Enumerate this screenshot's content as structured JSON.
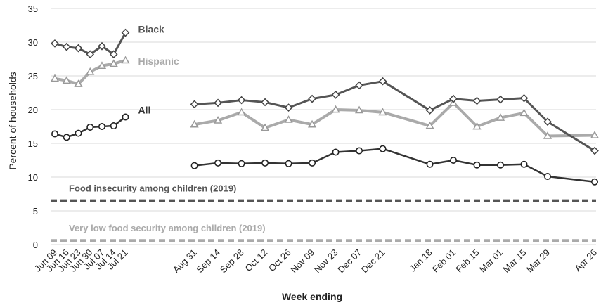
{
  "chart_data": {
    "type": "line",
    "title": "",
    "xlabel": "Week ending",
    "ylabel": "Percent of households",
    "ylim": [
      0,
      35
    ],
    "yticks": [
      0,
      5,
      10,
      15,
      20,
      25,
      30,
      35
    ],
    "grid": "horizontal",
    "categories": [
      "Jun 09",
      "Jun 16",
      "Jun 23",
      "Jun 30",
      "Jul 07",
      "Jul 14",
      "Jul 21",
      "Aug 31",
      "Sep 14",
      "Sep 28",
      "Oct 12",
      "Oct 26",
      "Nov 09",
      "Nov 23",
      "Dec 07",
      "Dec 21",
      "Jan 18",
      "Feb 01",
      "Feb 15",
      "Mar 01",
      "Mar 15",
      "Mar 29",
      "Apr 26"
    ],
    "series": [
      {
        "name": "Black",
        "color": "#555555",
        "marker": "diamond",
        "segments": [
          {
            "x": [
              "Jun 09",
              "Jun 16",
              "Jun 23",
              "Jun 30",
              "Jul 07",
              "Jul 14",
              "Jul 21"
            ],
            "y": [
              29.8,
              29.3,
              29.1,
              28.2,
              29.4,
              28.2,
              31.4
            ]
          },
          {
            "x": [
              "Aug 31",
              "Sep 14",
              "Sep 28",
              "Oct 12",
              "Oct 26",
              "Nov 09",
              "Nov 23",
              "Dec 07",
              "Dec 21",
              "Jan 18",
              "Feb 01",
              "Feb 15",
              "Mar 01",
              "Mar 15",
              "Mar 29",
              "Apr 26"
            ],
            "y": [
              20.8,
              21.0,
              21.4,
              21.1,
              20.3,
              21.6,
              22.2,
              23.6,
              24.2,
              19.9,
              21.6,
              21.3,
              21.5,
              21.7,
              18.2,
              13.9
            ]
          }
        ]
      },
      {
        "name": "Hispanic",
        "color": "#aaaaaa",
        "marker": "triangle",
        "segments": [
          {
            "x": [
              "Jun 09",
              "Jun 16",
              "Jun 23",
              "Jun 30",
              "Jul 07",
              "Jul 14",
              "Jul 21"
            ],
            "y": [
              24.6,
              24.3,
              23.8,
              25.6,
              26.5,
              26.8,
              27.3
            ]
          },
          {
            "x": [
              "Aug 31",
              "Sep 14",
              "Sep 28",
              "Oct 12",
              "Oct 26",
              "Nov 09",
              "Nov 23",
              "Dec 07",
              "Dec 21",
              "Jan 18",
              "Feb 01",
              "Feb 15",
              "Mar 01",
              "Mar 15",
              "Mar 29",
              "Apr 26"
            ],
            "y": [
              17.8,
              18.4,
              19.6,
              17.3,
              18.5,
              17.8,
              20.0,
              19.9,
              19.6,
              17.6,
              21.0,
              17.5,
              18.8,
              19.5,
              16.1,
              16.2
            ]
          }
        ]
      },
      {
        "name": "All",
        "color": "#333333",
        "marker": "circle",
        "segments": [
          {
            "x": [
              "Jun 09",
              "Jun 16",
              "Jun 23",
              "Jun 30",
              "Jul 07",
              "Jul 14",
              "Jul 21"
            ],
            "y": [
              16.4,
              15.9,
              16.5,
              17.4,
              17.5,
              17.6,
              18.9
            ]
          },
          {
            "x": [
              "Aug 31",
              "Sep 14",
              "Sep 28",
              "Oct 12",
              "Oct 26",
              "Nov 09",
              "Nov 23",
              "Dec 07",
              "Dec 21",
              "Jan 18",
              "Feb 01",
              "Feb 15",
              "Mar 01",
              "Mar 15",
              "Mar 29",
              "Apr 26"
            ],
            "y": [
              11.7,
              12.1,
              12.0,
              12.1,
              12.0,
              12.1,
              13.7,
              13.9,
              14.2,
              11.9,
              12.5,
              11.8,
              11.8,
              11.9,
              10.1,
              9.3
            ]
          }
        ]
      }
    ],
    "reference_lines": [
      {
        "label": "Food insecurity among children (2019)",
        "y": 6.5,
        "color": "#555555",
        "style": "dashed"
      },
      {
        "label": "Very low food security among children (2019)",
        "y": 0.6,
        "color": "#aaaaaa",
        "style": "dashed"
      }
    ]
  }
}
